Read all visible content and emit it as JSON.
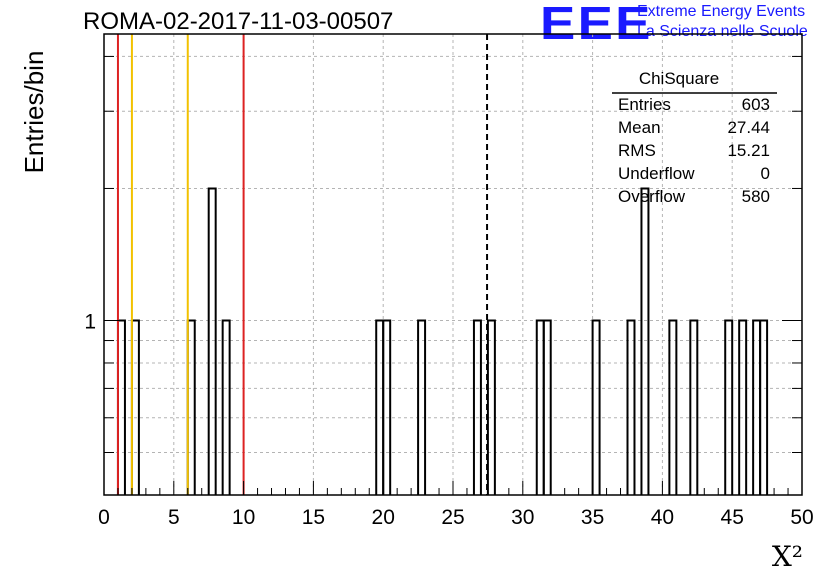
{
  "header": {
    "run_title": "ROMA-02-2017-11-03-00507"
  },
  "logo": {
    "mark": "EEE",
    "line1": "Extreme Energy Events",
    "line2": "La Scienza nelle Scuole",
    "color": "#1a1aff"
  },
  "stats_box": {
    "title": "ChiSquare",
    "rows": [
      {
        "label": "Entries",
        "value": "603"
      },
      {
        "label": "Mean",
        "value": "27.44"
      },
      {
        "label": "RMS",
        "value": "15.21"
      },
      {
        "label": "Underflow",
        "value": "0"
      },
      {
        "label": "Overflow",
        "value": "580"
      }
    ]
  },
  "chart_data": {
    "type": "histogram",
    "title": "ROMA-02-2017-11-03-00507",
    "xlabel": "X²",
    "ylabel": "Entries/bin",
    "xlim": [
      0,
      50
    ],
    "y_scale": "log",
    "ylim": [
      0.4,
      4.5
    ],
    "bin_width": 0.5,
    "grid": true,
    "x_ticks": [
      "0",
      "5",
      "10",
      "15",
      "20",
      "25",
      "30",
      "35",
      "40",
      "45",
      "50"
    ],
    "y_tick_labels": [
      "1"
    ],
    "bins": [
      {
        "x0": 1.0,
        "x1": 1.5,
        "count": 1
      },
      {
        "x0": 2.0,
        "x1": 2.5,
        "count": 1
      },
      {
        "x0": 6.0,
        "x1": 6.5,
        "count": 1
      },
      {
        "x0": 7.5,
        "x1": 8.0,
        "count": 2
      },
      {
        "x0": 8.5,
        "x1": 9.0,
        "count": 1
      },
      {
        "x0": 19.5,
        "x1": 20.0,
        "count": 1
      },
      {
        "x0": 20.0,
        "x1": 20.5,
        "count": 1
      },
      {
        "x0": 22.5,
        "x1": 23.0,
        "count": 1
      },
      {
        "x0": 26.5,
        "x1": 27.0,
        "count": 1
      },
      {
        "x0": 27.5,
        "x1": 28.0,
        "count": 1
      },
      {
        "x0": 31.0,
        "x1": 31.5,
        "count": 1
      },
      {
        "x0": 31.5,
        "x1": 32.0,
        "count": 1
      },
      {
        "x0": 35.0,
        "x1": 35.5,
        "count": 1
      },
      {
        "x0": 37.5,
        "x1": 38.0,
        "count": 1
      },
      {
        "x0": 38.5,
        "x1": 39.0,
        "count": 2
      },
      {
        "x0": 40.5,
        "x1": 41.0,
        "count": 1
      },
      {
        "x0": 42.0,
        "x1": 42.5,
        "count": 1
      },
      {
        "x0": 44.5,
        "x1": 45.0,
        "count": 1
      },
      {
        "x0": 45.5,
        "x1": 46.0,
        "count": 1
      },
      {
        "x0": 46.5,
        "x1": 47.0,
        "count": 1
      },
      {
        "x0": 47.0,
        "x1": 47.5,
        "count": 1
      }
    ],
    "reference_lines": [
      {
        "x": 1.0,
        "color": "#dd2222"
      },
      {
        "x": 2.0,
        "color": "#f2c200"
      },
      {
        "x": 6.0,
        "color": "#f2c200"
      },
      {
        "x": 10.0,
        "color": "#dd2222"
      },
      {
        "x": 27.44,
        "color": "#000000",
        "dashed": true
      }
    ]
  }
}
